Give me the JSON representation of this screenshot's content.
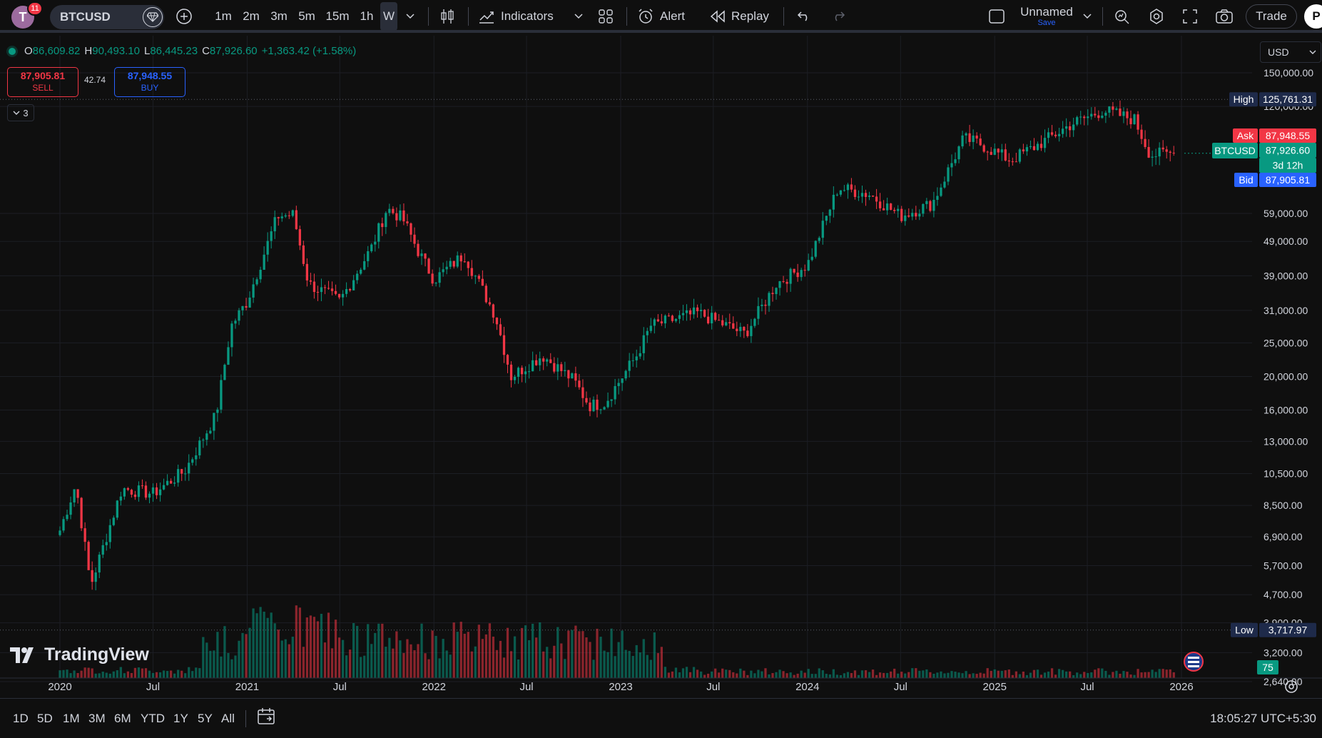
{
  "toolbar": {
    "avatar_letter": "T",
    "notification_count": "11",
    "symbol": "BTCUSD",
    "timeframes": [
      "1m",
      "2m",
      "3m",
      "5m",
      "15m",
      "1h",
      "W"
    ],
    "active_timeframe": "W",
    "indicators_label": "Indicators",
    "alert_label": "Alert",
    "replay_label": "Replay",
    "layout_name": "Unnamed",
    "layout_save": "Save",
    "trade_label": "Trade",
    "publish_letter": "P"
  },
  "legend": {
    "open_key": "O",
    "open": "86,609.82",
    "high_key": "H",
    "high": "90,493.10",
    "low_key": "L",
    "low": "86,445.23",
    "close_key": "C",
    "close": "87,926.60",
    "change": "+1,363.42 (+1.58%)"
  },
  "trade": {
    "sell_price": "87,905.81",
    "sell_label": "SELL",
    "spread": "42.74",
    "buy_price": "87,948.55",
    "buy_label": "BUY",
    "indicator_count": "3"
  },
  "currency": "USD",
  "price_axis": {
    "ticks": [
      "150,000.00",
      "120,000.00",
      "59,000.00",
      "49,000.00",
      "39,000.00",
      "31,000.00",
      "25,000.00",
      "20,000.00",
      "16,000.00",
      "13,000.00",
      "10,500.00",
      "8,500.00",
      "6,900.00",
      "5,700.00",
      "4,700.00",
      "3,900.00",
      "3,200.00",
      "2,640.00"
    ],
    "high_label": "High",
    "high_value": "125,761.31",
    "ask_label": "Ask",
    "ask_value": "87,948.55",
    "symbol_label": "BTCUSD",
    "last_value": "87,926.60",
    "countdown": "3d 12h",
    "bid_label": "Bid",
    "bid_value": "87,905.81",
    "low_label": "Low",
    "low_value": "3,717.97",
    "volume_badge": "75"
  },
  "time_axis": {
    "labels": [
      "2020",
      "Jul",
      "2021",
      "Jul",
      "2022",
      "Jul",
      "2023",
      "Jul",
      "2024",
      "Jul",
      "2025",
      "Jul",
      "2026"
    ]
  },
  "watermark": "TradingView",
  "bottom": {
    "ranges": [
      "1D",
      "5D",
      "1M",
      "3M",
      "6M",
      "YTD",
      "1Y",
      "5Y",
      "All"
    ],
    "clock": "18:05:27 UTC+5:30"
  },
  "colors": {
    "up": "#089981",
    "down": "#f23645",
    "ask": "#f23645",
    "bid": "#2962ff",
    "label": "#1e2a4a"
  },
  "chart_data": {
    "type": "candlestick",
    "symbol": "BTCUSD",
    "interval": "W",
    "scale": "log",
    "x_range": [
      "2019-12",
      "2026-01"
    ],
    "y_range": [
      2640,
      150000
    ],
    "close_path": [
      [
        "2020-01",
        7200
      ],
      [
        "2020-02",
        9800
      ],
      [
        "2020-03",
        5000
      ],
      [
        "2020-05",
        9500
      ],
      [
        "2020-07",
        9200
      ],
      [
        "2020-09",
        10700
      ],
      [
        "2020-11",
        15500
      ],
      [
        "2020-12",
        28000
      ],
      [
        "2021-01",
        33000
      ],
      [
        "2021-03",
        58000
      ],
      [
        "2021-04",
        58500
      ],
      [
        "2021-05",
        37000
      ],
      [
        "2021-07",
        33000
      ],
      [
        "2021-09",
        47000
      ],
      [
        "2021-10",
        61000
      ],
      [
        "2021-11",
        57000
      ],
      [
        "2021-12",
        46000
      ],
      [
        "2022-01",
        38000
      ],
      [
        "2022-03",
        45000
      ],
      [
        "2022-05",
        30000
      ],
      [
        "2022-06",
        20000
      ],
      [
        "2022-08",
        23000
      ],
      [
        "2022-10",
        19500
      ],
      [
        "2022-11",
        16500
      ],
      [
        "2022-12",
        16800
      ],
      [
        "2023-02",
        23000
      ],
      [
        "2023-03",
        28000
      ],
      [
        "2023-06",
        30500
      ],
      [
        "2023-09",
        26500
      ],
      [
        "2023-11",
        37000
      ],
      [
        "2024-01",
        42000
      ],
      [
        "2024-03",
        70000
      ],
      [
        "2024-05",
        67000
      ],
      [
        "2024-07",
        58000
      ],
      [
        "2024-09",
        63000
      ],
      [
        "2024-11",
        97000
      ],
      [
        "2024-12",
        94000
      ],
      [
        "2025-02",
        84000
      ],
      [
        "2025-04",
        94000
      ],
      [
        "2025-06",
        107000
      ],
      [
        "2025-08",
        117000
      ],
      [
        "2025-10",
        110000
      ],
      [
        "2025-11",
        87000
      ],
      [
        "2025-12",
        87926.6
      ]
    ],
    "high": 125761.31,
    "low": 3717.97,
    "last": 87926.6,
    "volume": "present (bars at bottom of pane)"
  }
}
